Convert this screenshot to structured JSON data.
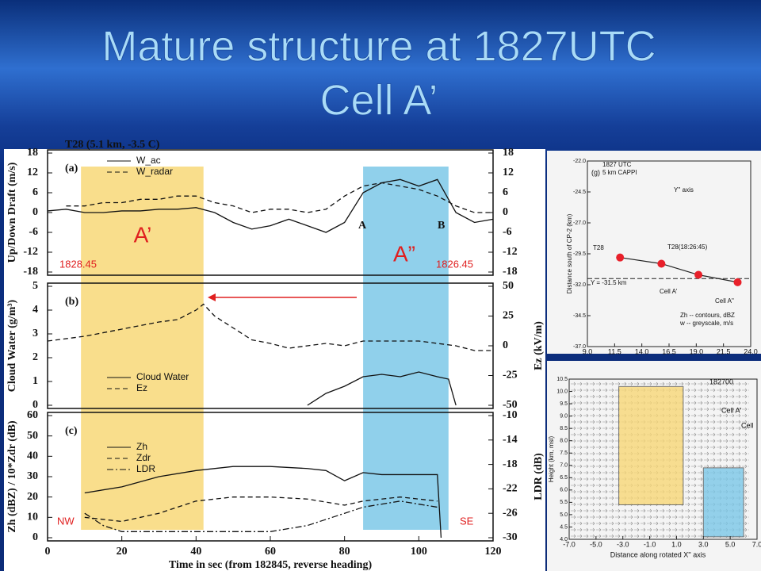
{
  "title": "Mature structure at 1827UTC",
  "subtitle": "Cell A’",
  "chart_data": [
    {
      "type": "line",
      "panel_label": "(a)",
      "ylabel": "Up/Down Draft (m/s)",
      "ylim": [
        -18,
        18
      ],
      "yticks": [
        -18,
        -12,
        -6,
        0,
        6,
        12,
        18
      ],
      "y2lim": [
        -18,
        18
      ],
      "y2ticks": [
        -18,
        -12,
        -6,
        0,
        6,
        12,
        18
      ],
      "annotations": [
        "T28 (5.1 km, -3.5 C)",
        "A",
        "B"
      ],
      "series": [
        {
          "name": "W_ac",
          "color": "#111111",
          "style": "solid",
          "x": [
            0,
            5,
            10,
            15,
            20,
            25,
            30,
            35,
            40,
            45,
            50,
            55,
            60,
            65,
            70,
            75,
            80,
            85,
            90,
            95,
            100,
            105,
            110,
            115,
            120
          ],
          "values": [
            0.5,
            1,
            0,
            0,
            0.5,
            0.5,
            1,
            1,
            1.5,
            0,
            -3,
            -5,
            -4,
            -2,
            -4,
            -6,
            -3,
            6,
            9,
            10,
            8,
            10,
            0,
            -3,
            -2
          ]
        },
        {
          "name": "W_radar",
          "color": "#111111",
          "style": "dashed",
          "x": [
            5,
            10,
            15,
            20,
            25,
            30,
            35,
            40,
            45,
            50,
            55,
            60,
            65,
            70,
            75,
            80,
            85,
            90,
            95,
            100,
            105,
            110,
            115,
            120
          ],
          "values": [
            2,
            2,
            3,
            3,
            4,
            4,
            5,
            5,
            3,
            2,
            0,
            1,
            1,
            0,
            1,
            5,
            8,
            9,
            8,
            7,
            5,
            2,
            0,
            0
          ]
        }
      ]
    },
    {
      "type": "line",
      "panel_label": "(b)",
      "ylabel": "Cloud Water (g/m³)",
      "ylim": [
        0,
        5
      ],
      "yticks": [
        0,
        1,
        2,
        3,
        4,
        5
      ],
      "y2label": "Ez (kV/m)",
      "y2lim": [
        -50,
        50
      ],
      "y2ticks": [
        -50,
        -25,
        0,
        25,
        50
      ],
      "series": [
        {
          "name": "Cloud Water",
          "color": "#111111",
          "style": "solid",
          "x": [
            70,
            75,
            80,
            85,
            90,
            95,
            100,
            105,
            108,
            110
          ],
          "values": [
            0,
            0.5,
            0.8,
            1.2,
            1.3,
            1.2,
            1.4,
            1.2,
            1.1,
            0
          ]
        },
        {
          "name": "Ez",
          "color": "#111111",
          "style": "dashed",
          "axis": "y2",
          "x": [
            0,
            10,
            20,
            30,
            35,
            40,
            42,
            45,
            50,
            55,
            60,
            65,
            70,
            75,
            80,
            85,
            90,
            95,
            100,
            105,
            110,
            115,
            120
          ],
          "values": [
            4,
            8,
            14,
            20,
            22,
            30,
            35,
            25,
            15,
            5,
            2,
            -2,
            0,
            2,
            0,
            4,
            4,
            4,
            4,
            2,
            0,
            -4,
            -4
          ]
        }
      ]
    },
    {
      "type": "line",
      "panel_label": "(c)",
      "ylabel": "Zh (dBZ) / 10*Zdr (dB)",
      "ylim": [
        0,
        60
      ],
      "yticks": [
        0,
        10,
        20,
        30,
        40,
        50,
        60
      ],
      "y2label": "LDR (dB)",
      "y2lim": [
        -30,
        -10
      ],
      "y2ticks": [
        -30,
        -26,
        -22,
        -18,
        -14,
        -10
      ],
      "xlabel": "Time in sec (from 182845, reverse heading)",
      "xlim": [
        0,
        120
      ],
      "xticks": [
        0,
        20,
        40,
        60,
        80,
        100,
        120
      ],
      "series": [
        {
          "name": "Zh",
          "color": "#111111",
          "style": "solid",
          "x": [
            10,
            20,
            30,
            40,
            50,
            60,
            70,
            75,
            80,
            85,
            90,
            100,
            105,
            106
          ],
          "values": [
            22,
            25,
            30,
            33,
            35,
            35,
            34,
            33,
            28,
            32,
            31,
            31,
            31,
            0
          ]
        },
        {
          "name": "Zdr",
          "color": "#111111",
          "style": "dashed",
          "x": [
            10,
            20,
            30,
            40,
            50,
            60,
            70,
            80,
            85,
            95,
            105
          ],
          "values": [
            10,
            8,
            12,
            18,
            20,
            20,
            19,
            16,
            18,
            20,
            18
          ]
        },
        {
          "name": "LDR",
          "color": "#111111",
          "style": "dashdot",
          "axis": "y2",
          "x": [
            10,
            15,
            20,
            30,
            40,
            50,
            60,
            70,
            80,
            85,
            95,
            105
          ],
          "values": [
            -26,
            -28,
            -29,
            -29,
            -29,
            -29,
            -29,
            -28,
            -26,
            -25,
            -24,
            -25
          ]
        }
      ]
    }
  ],
  "highlights": [
    {
      "label": "A’",
      "time_label": "1828.45",
      "x": [
        9,
        42
      ],
      "color": "#f8d878"
    },
    {
      "label": "A”",
      "time_label": "1826.45",
      "x": [
        85,
        108
      ],
      "color": "#7cc8e8"
    }
  ],
  "direction_labels": [
    "NW",
    "SE"
  ],
  "right_figures": {
    "top": {
      "panel_label": "(g)",
      "texts": [
        "1827 UTC",
        "5 km CAPPI",
        "Y = -31.5 km",
        "T28",
        "T28(18:26:45)",
        "Cell A'",
        "Cell A''",
        "Zh -- contours, dBZ",
        "w -- greyscale, m/s",
        "Y'' axis"
      ],
      "ylabel": "Distance south of CP-2 (km)",
      "xlim": [
        9,
        24
      ],
      "xticks": [
        {
          "value": 9,
          "label": "9.0"
        },
        {
          "value": 11.5,
          "label": "11.5"
        },
        {
          "value": 14,
          "label": "14.0"
        },
        {
          "value": 16.5,
          "label": "16.5"
        },
        {
          "value": 19,
          "label": "19.0"
        },
        {
          "value": 21.5,
          "label": "21.5"
        },
        {
          "value": 24,
          "label": "24.0"
        }
      ],
      "ylim": [
        -37,
        -22
      ],
      "yticks": [
        {
          "value": -22,
          "label": "-22.0"
        },
        -24.5,
        {
          "value": -27,
          "label": "-27.0"
        },
        -29.5,
        {
          "value": -32,
          "label": "-32.0"
        },
        -34.5,
        {
          "value": -37,
          "label": "-37.0"
        }
      ],
      "points": {
        "x": [
          12,
          15.8,
          19.2,
          22.8
        ],
        "y": [
          -29.8,
          -30.3,
          -31.2,
          -31.8
        ],
        "color": "#e8202a"
      },
      "reference_y": -31.5
    },
    "bottom": {
      "texts": [
        "182700",
        "Cell A'",
        "Cell"
      ],
      "ylabel": "Height (km, msl)",
      "xlabel": "Distance along rotated X'' axis",
      "xlim": [
        -7,
        7
      ],
      "xticks": [
        {
          "value": -7,
          "label": "-7.0"
        },
        {
          "value": -5,
          "label": "-5.0"
        },
        {
          "value": -3,
          "label": "-3.0"
        },
        {
          "value": -1,
          "label": "-1.0"
        },
        {
          "value": 1,
          "label": "1.0"
        },
        {
          "value": 3,
          "label": "3.0"
        },
        {
          "value": 5,
          "label": "5.0"
        },
        {
          "value": 7,
          "label": "7.0"
        }
      ],
      "ylim": [
        4,
        10.5
      ],
      "yticks": [
        {
          "value": 4,
          "label": "4.0"
        },
        4.5,
        {
          "value": 5,
          "label": "5.0"
        },
        5.5,
        {
          "value": 6,
          "label": "6.0"
        },
        6.5,
        {
          "value": 7,
          "label": "7.0"
        },
        7.5,
        {
          "value": 8,
          "label": "8.0"
        },
        8.5,
        {
          "value": 9,
          "label": "9.0"
        },
        9.5,
        {
          "value": 10,
          "label": "10.0"
        },
        10.5
      ],
      "highlights": [
        {
          "x": [
            -3.3,
            1.5
          ],
          "y": [
            5.4,
            10.2
          ],
          "color": "#f8d878"
        },
        {
          "x": [
            3,
            6
          ],
          "y": [
            4.1,
            6.9
          ],
          "color": "#7cc8e8"
        }
      ]
    }
  }
}
